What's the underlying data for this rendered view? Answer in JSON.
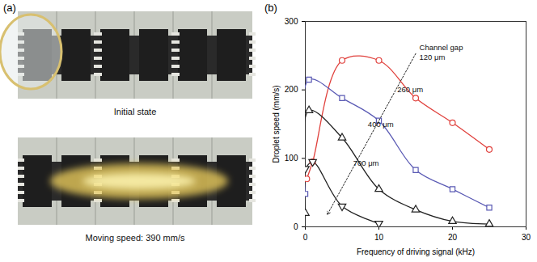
{
  "panel_a": {
    "label": "(a)",
    "captions": [
      "Initial state",
      "Moving speed: 390 mm/s"
    ]
  },
  "chart_data": {
    "type": "line",
    "panel_label": "(b)",
    "x_label": "Frequency of driving signal (kHz)",
    "y_label": "Droplet speed (mm/s)",
    "xlim": [
      0,
      30
    ],
    "xticks": [
      0,
      10,
      20,
      30
    ],
    "ylim": [
      0,
      300
    ],
    "yticks": [
      0,
      100,
      200,
      300
    ],
    "series": [
      {
        "color": "#e0403c",
        "marker": "circle",
        "x": [
          0.2,
          1,
          5,
          10,
          15,
          20,
          25
        ],
        "values": [
          70,
          95,
          243,
          243,
          188,
          152,
          113
        ]
      },
      {
        "color": "#5a5ab4",
        "marker": "square",
        "x": [
          0,
          0.5,
          5,
          10,
          15,
          20,
          25
        ],
        "values": [
          48,
          215,
          188,
          155,
          83,
          55,
          28
        ]
      },
      {
        "color": "#222222",
        "marker": "triangle",
        "x": [
          0,
          0.5,
          5,
          10,
          15,
          20,
          25
        ],
        "values": [
          20,
          170,
          130,
          55,
          25,
          8,
          4
        ]
      },
      {
        "color": "#222222",
        "marker": "triangle-down",
        "x": [
          0,
          1,
          5,
          10
        ],
        "values": [
          85,
          95,
          30,
          5
        ]
      }
    ],
    "annotations": [
      {
        "text": "Channel gap",
        "x": 15.5,
        "y": 262
      },
      {
        "text": "120 μm",
        "x": 15.5,
        "y": 248
      },
      {
        "text": "260 μm",
        "x": 12.5,
        "y": 200
      },
      {
        "text": "400 μm",
        "x": 8.5,
        "y": 150
      },
      {
        "text": "700 μm",
        "x": 6.5,
        "y": 93
      }
    ],
    "arrow": {
      "x": [
        15,
        3
      ],
      "y": [
        253,
        18
      ]
    }
  }
}
